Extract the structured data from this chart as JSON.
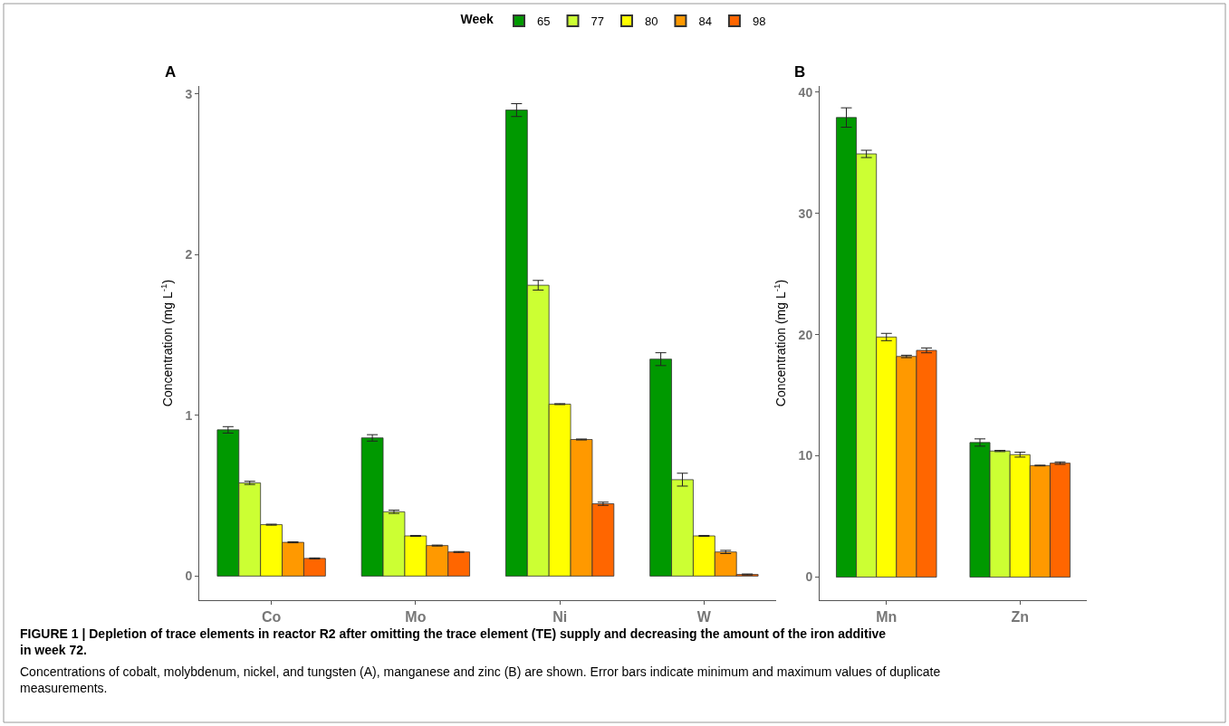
{
  "chart_data": [
    {
      "type": "bar",
      "title": "A",
      "ylabel": "Concentration (mg L$^{-1}$)",
      "legend_title": "Week",
      "legend": "top",
      "categories": [
        "Co",
        "Mo",
        "Ni",
        "W"
      ],
      "ylim": [
        -0.15,
        3.05
      ],
      "yticks": [
        0,
        1,
        2,
        3
      ],
      "series": [
        {
          "name": "65",
          "color": "#009900",
          "values": [
            0.91,
            0.86,
            2.9,
            1.35
          ],
          "errors": [
            0.02,
            0.02,
            0.04,
            0.04
          ]
        },
        {
          "name": "77",
          "color": "#ccff33",
          "values": [
            0.58,
            0.4,
            1.81,
            0.6
          ],
          "errors": [
            0.01,
            0.01,
            0.03,
            0.04
          ]
        },
        {
          "name": "80",
          "color": "#ffff00",
          "values": [
            0.32,
            0.25,
            1.07,
            0.25
          ],
          "errors": [
            0.003,
            0.003,
            0.003,
            0.003
          ]
        },
        {
          "name": "84",
          "color": "#ff9900",
          "values": [
            0.21,
            0.19,
            0.85,
            0.15
          ],
          "errors": [
            0.003,
            0.003,
            0.003,
            0.01
          ]
        },
        {
          "name": "98",
          "color": "#ff6600",
          "values": [
            0.11,
            0.15,
            0.45,
            0.01
          ],
          "errors": [
            0.003,
            0.003,
            0.01,
            0.003
          ]
        }
      ],
      "annotations": [
        "FIGURE 1 | Depletion of trace elements in reactor R2 after omitting the trace element (TE) supply and decreasing the amount of the iron additive in week 72.",
        "Concentrations of cobalt, molybdenum, nickel, and tungsten (A), manganese and zinc (B) are shown. Error bars indicate minimum and maximum values of duplicate measurements."
      ]
    },
    {
      "type": "bar",
      "title": "B",
      "ylabel": "Concentration (mg L$^{-1}$)",
      "categories": [
        "Mn",
        "Zn"
      ],
      "ylim": [
        -1.9,
        40.5
      ],
      "yticks": [
        0,
        10,
        20,
        30,
        40
      ],
      "series": [
        {
          "name": "65",
          "color": "#009900",
          "values": [
            37.9,
            11.1
          ],
          "errors": [
            0.8,
            0.3
          ]
        },
        {
          "name": "77",
          "color": "#ccff33",
          "values": [
            34.9,
            10.4
          ],
          "errors": [
            0.3,
            0.05
          ]
        },
        {
          "name": "80",
          "color": "#ffff00",
          "values": [
            19.8,
            10.1
          ],
          "errors": [
            0.3,
            0.2
          ]
        },
        {
          "name": "84",
          "color": "#ff9900",
          "values": [
            18.2,
            9.2
          ],
          "errors": [
            0.1,
            0.03
          ]
        },
        {
          "name": "98",
          "color": "#ff6600",
          "values": [
            18.7,
            9.4
          ],
          "errors": [
            0.2,
            0.1
          ]
        }
      ]
    }
  ]
}
